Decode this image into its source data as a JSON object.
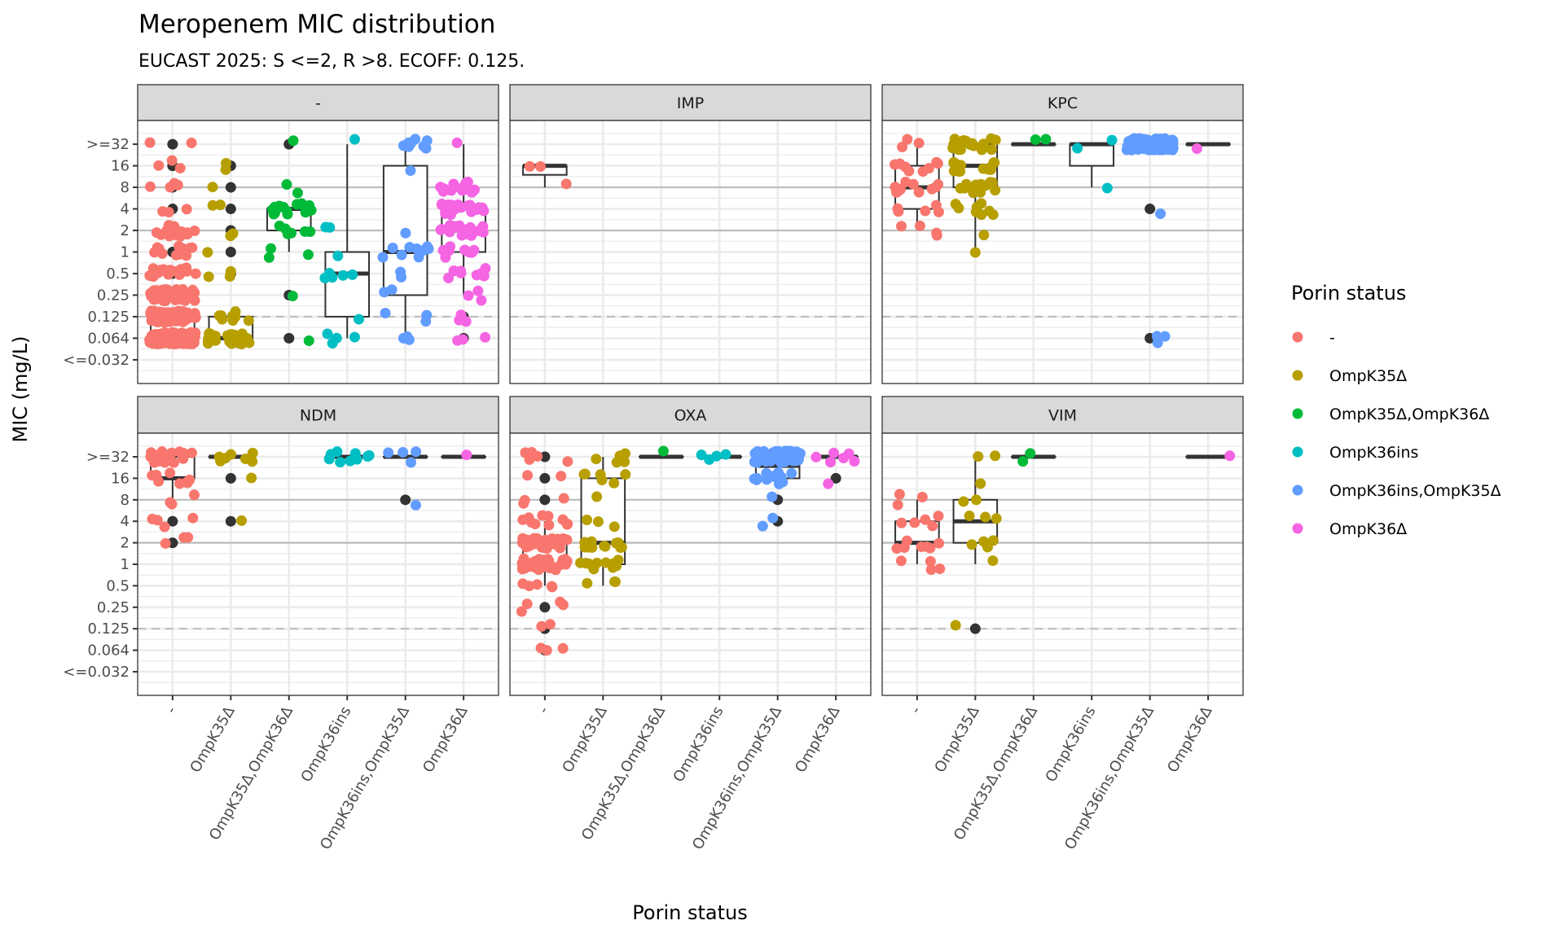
{
  "chart_data": {
    "type": "box+jitter (faceted)",
    "title": "Meropenem MIC distribution",
    "subtitle": "EUCAST 2025: S <=2, R >8. ECOFF: 0.125.",
    "xlabel": "Porin status",
    "ylabel": "MIC (mg/L)",
    "y_scale": "log2 (ordinal MIC levels)",
    "y_ticks": [
      "<=0.032",
      "0.064",
      "0.125",
      "0.25",
      "0.5",
      "1",
      "2",
      "4",
      "8",
      "16",
      ">=32"
    ],
    "reference_lines": [
      {
        "value": "2",
        "style": "solid",
        "meaning": "S breakpoint"
      },
      {
        "value": "8",
        "style": "solid",
        "meaning": "R breakpoint"
      },
      {
        "value": "0.125",
        "style": "dashed",
        "meaning": "ECOFF"
      }
    ],
    "categories": [
      "-",
      "OmpK35Δ",
      "OmpK35Δ,OmpK36Δ",
      "OmpK36ins",
      "OmpK36ins,OmpK35Δ",
      "OmpK36Δ"
    ],
    "legend": {
      "title": "Porin status",
      "position": "right",
      "entries": [
        {
          "label": "-",
          "color": "#F8766D"
        },
        {
          "label": "OmpK35Δ",
          "color": "#B79F00"
        },
        {
          "label": "OmpK35Δ,OmpK36Δ",
          "color": "#00BA38"
        },
        {
          "label": "OmpK36ins",
          "color": "#00BFC4"
        },
        {
          "label": "OmpK36ins,OmpK35Δ",
          "color": "#619CFF"
        },
        {
          "label": "OmpK36Δ",
          "color": "#F564E3"
        }
      ]
    },
    "outlier_color": "#333333",
    "facets": [
      {
        "name": "-",
        "boxes": [
          {
            "category": "-",
            "q1": "0.064",
            "median": "0.064",
            "q3": "0.125",
            "note": "box collapsed near bottom"
          },
          {
            "category": "OmpK35Δ",
            "q1": "0.064",
            "median": "0.064",
            "q3": "0.125",
            "lower": "0.064",
            "upper": "0.125"
          },
          {
            "category": "OmpK35Δ,OmpK36Δ",
            "q1": "2",
            "median": "4",
            "q3": "4",
            "lower": "1",
            "upper": "4"
          },
          {
            "category": "OmpK36ins",
            "q1": "0.125",
            "median": "0.5",
            "q3": "1",
            "lower": "0.064",
            "upper": ">=32"
          },
          {
            "category": "OmpK36ins,OmpK35Δ",
            "q1": "0.25",
            "median": "1",
            "q3": "16",
            "lower": "0.064",
            "upper": ">=32"
          },
          {
            "category": "OmpK36Δ",
            "q1": "1",
            "median": "2",
            "q3": "4",
            "lower": "0.25",
            "upper": ">=32"
          }
        ],
        "counts": {
          "-": {
            ">=32": 2,
            "16": 3,
            "8": 4,
            "4": 3,
            "2": 18,
            "1": 14,
            "0.5": 16,
            "0.25": 60,
            "0.125": 60,
            "0.064": 170
          },
          "OmpK35Δ": {
            "16": 2,
            "8": 1,
            "4": 2,
            "2": 2,
            "1": 1,
            "0.5": 3,
            "0.125": 8,
            "0.064": 30
          },
          "OmpK35Δ,OmpK36Δ": {
            ">=32": 1,
            "8": 2,
            "4": 18,
            "2": 6,
            "1": 3,
            "0.25": 1,
            "0.064": 1
          },
          "OmpK36ins": {
            ">=32": 1,
            "2": 2,
            "1": 1,
            "0.5": 5,
            "0.125": 1,
            "0.064": 4
          },
          "OmpK36ins,OmpK35Δ": {
            ">=32": 8,
            "16": 1,
            "2": 1,
            "1": 9,
            "0.5": 2,
            "0.25": 2,
            "0.125": 3,
            "0.064": 3
          },
          "OmpK36Δ": {
            ">=32": 1,
            "8": 12,
            "4": 22,
            "2": 20,
            "1": 8,
            "0.5": 10,
            "0.25": 3,
            "0.125": 3,
            "0.064": 3
          }
        },
        "outliers": {
          "-": [
            ">=32",
            "16",
            "8",
            "4",
            "1",
            "0.5"
          ],
          "OmpK35Δ": [
            "16",
            "8",
            "4",
            "2",
            "1",
            "0.5"
          ],
          "OmpK35Δ,OmpK36Δ": [
            ">=32",
            "0.25",
            "0.064"
          ],
          "OmpK36Δ": [
            "0.125",
            "0.064"
          ]
        }
      },
      {
        "name": "IMP",
        "boxes": [
          {
            "category": "-",
            "q1": "12",
            "median": "16",
            "q3": "16",
            "lower": "8",
            "upper": "16"
          }
        ],
        "counts": {
          "-": {
            "16": 2,
            "8": 1
          }
        },
        "outliers": {}
      },
      {
        "name": "KPC",
        "boxes": [
          {
            "category": "-",
            "q1": "4",
            "median": "8",
            "q3": "16",
            "lower": "2",
            "upper": ">=32"
          },
          {
            "category": "OmpK35Δ",
            "q1": "8",
            "median": "16",
            "q3": ">=32",
            "lower": "1",
            "upper": ">=32"
          },
          {
            "category": "OmpK35Δ,OmpK36Δ",
            "q1": ">=32",
            "median": ">=32",
            "q3": ">=32"
          },
          {
            "category": "OmpK36ins",
            "q1": "16",
            "median": ">=32",
            "q3": ">=32",
            "lower": "8",
            "upper": ">=32"
          },
          {
            "category": "OmpK36ins,OmpK35Δ",
            "q1": ">=32",
            "median": ">=32",
            "q3": ">=32"
          },
          {
            "category": "OmpK36Δ",
            "q1": ">=32",
            "median": ">=32",
            "q3": ">=32"
          }
        ],
        "counts": {
          "-": {
            ">=32": 3,
            "16": 8,
            "8": 10,
            "4": 5,
            "2": 4
          },
          "OmpK35Δ": {
            ">=32": 20,
            "16": 15,
            "8": 12,
            "4": 8,
            "2": 1,
            "1": 1
          },
          "OmpK35Δ,OmpK36Δ": {
            ">=32": 2
          },
          "OmpK36ins": {
            ">=32": 2,
            "8": 1
          },
          "OmpK36ins,OmpK35Δ": {
            ">=32": 150,
            "4": 1,
            "0.064": 3
          },
          "OmpK36Δ": {
            ">=32": 1
          }
        },
        "outliers": {
          "OmpK36ins,OmpK35Δ": [
            "4",
            "0.064"
          ]
        }
      },
      {
        "name": "NDM",
        "boxes": [
          {
            "category": "-",
            "q1": "16",
            "median": "16",
            "q3": ">=32",
            "lower": "8",
            "upper": ">=32"
          },
          {
            "category": "OmpK35Δ",
            "q1": ">=32",
            "median": ">=32",
            "q3": ">=32"
          },
          {
            "category": "OmpK36ins",
            "q1": ">=32",
            "median": ">=32",
            "q3": ">=32"
          },
          {
            "category": "OmpK36ins,OmpK35Δ",
            "q1": ">=32",
            "median": ">=32",
            "q3": ">=32"
          },
          {
            "category": "OmpK36Δ",
            "q1": ">=32",
            "median": ">=32",
            "q3": ">=32"
          }
        ],
        "counts": {
          "-": {
            ">=32": 18,
            "16": 8,
            "8": 3,
            "4": 4,
            "2": 3
          },
          "OmpK35Δ": {
            ">=32": 8,
            "16": 1,
            "4": 1
          },
          "OmpK36ins": {
            ">=32": 9
          },
          "OmpK36ins,OmpK35Δ": {
            ">=32": 4,
            "8": 1
          },
          "OmpK36Δ": {
            ">=32": 1
          }
        },
        "outliers": {
          "-": [
            "4",
            "2"
          ],
          "OmpK35Δ": [
            "16",
            "4"
          ],
          "OmpK36ins,OmpK35Δ": [
            "8"
          ]
        }
      },
      {
        "name": "OXA",
        "boxes": [
          {
            "category": "-",
            "q1": "1",
            "median": "2",
            "q3": "2",
            "lower": "0.5",
            "upper": "4"
          },
          {
            "category": "OmpK35Δ",
            "q1": "1",
            "median": "2",
            "q3": "16",
            "lower": "0.5",
            "upper": ">=32"
          },
          {
            "category": "OmpK35Δ,OmpK36Δ",
            "q1": ">=32",
            "median": ">=32",
            "q3": ">=32"
          },
          {
            "category": "OmpK36ins",
            "q1": ">=32",
            "median": ">=32",
            "q3": ">=32"
          },
          {
            "category": "OmpK36ins,OmpK35Δ",
            "q1": "16",
            "median": "24",
            "q3": ">=32"
          },
          {
            "category": "OmpK36Δ",
            "q1": ">=32",
            "median": ">=32",
            "q3": ">=32"
          }
        ],
        "counts": {
          "-": {
            ">=32": 6,
            "16": 2,
            "8": 3,
            "4": 10,
            "2": 45,
            "1": 40,
            "0.5": 5,
            "0.25": 4,
            "0.125": 2,
            "0.064": 3
          },
          "OmpK35Δ": {
            ">=32": 5,
            "16": 6,
            "8": 1,
            "4": 3,
            "2": 12,
            "1": 12,
            "0.5": 3
          },
          "OmpK35Δ,OmpK36Δ": {
            ">=32": 1
          },
          "OmpK36ins": {
            ">=32": 4
          },
          "OmpK36ins,OmpK35Δ": {
            ">=32": 70,
            "16": 12,
            "8": 1,
            "4": 2
          },
          "OmpK36Δ": {
            ">=32": 6,
            "16": 1
          }
        },
        "outliers": {
          "-": [
            ">=32",
            "16",
            "8",
            "0.25",
            "0.125",
            "0.064"
          ],
          "OmpK36ins,OmpK35Δ": [
            "8",
            "4"
          ],
          "OmpK36Δ": [
            "16"
          ]
        }
      },
      {
        "name": "VIM",
        "boxes": [
          {
            "category": "-",
            "q1": "2",
            "median": "2",
            "q3": "4",
            "lower": "1",
            "upper": "8"
          },
          {
            "category": "OmpK35Δ",
            "q1": "2",
            "median": "4",
            "q3": "8",
            "lower": "1",
            "upper": ">=32"
          },
          {
            "category": "OmpK35Δ,OmpK36Δ",
            "q1": ">=32",
            "median": ">=32",
            "q3": ">=32"
          },
          {
            "category": "OmpK36Δ",
            "q1": ">=32",
            "median": ">=32",
            "q3": ">=32"
          }
        ],
        "counts": {
          "-": {
            "8": 3,
            "4": 5,
            "2": 7,
            "1": 4
          },
          "OmpK35Δ": {
            ">=32": 2,
            "16": 1,
            "8": 2,
            "4": 3,
            "2": 4,
            "1": 1,
            "0.125": 1
          },
          "OmpK35Δ,OmpK36Δ": {
            ">=32": 2
          },
          "OmpK36Δ": {
            ">=32": 1
          }
        },
        "outliers": {
          "OmpK35Δ": [
            "0.125"
          ]
        }
      }
    ]
  }
}
